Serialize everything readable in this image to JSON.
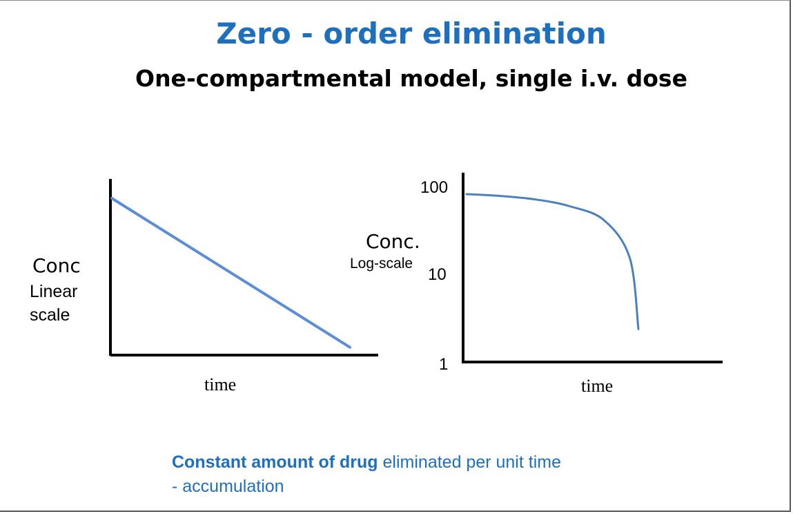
{
  "slide": {
    "title": "Zero - order elimination",
    "subtitle": "One-compartmental model, single i.v. dose",
    "footer": {
      "bold_text": "Constant amount of drug",
      "text": " eliminated per unit time",
      "line2": "- accumulation"
    },
    "colors": {
      "title": "#1f6fbf",
      "line_linear": "#5b8ed6",
      "line_log": "#4a7fc0",
      "axis": "#000000"
    }
  },
  "chart_data": [
    {
      "type": "line",
      "title": "",
      "ylabel": "Conc",
      "ylabel_sub": "Linear scale",
      "xlabel": "time",
      "y_scale": "linear",
      "x_ticks": [],
      "y_ticks": [],
      "series": [
        {
          "x": [
            0,
            1
          ],
          "values": [
            1,
            0.05
          ]
        }
      ]
    },
    {
      "type": "line",
      "title": "",
      "ylabel": "Conc.",
      "ylabel_sub": "Log-scale",
      "xlabel": "time",
      "y_scale": "log",
      "ylim": [
        1,
        100
      ],
      "y_ticks": [
        "100",
        "10",
        "1"
      ],
      "series": [
        {
          "x": [
            0,
            0.2,
            0.4,
            0.6,
            0.8,
            0.95,
            1
          ],
          "values": [
            85,
            81,
            74,
            62,
            43,
            16,
            2.5
          ]
        }
      ]
    }
  ]
}
